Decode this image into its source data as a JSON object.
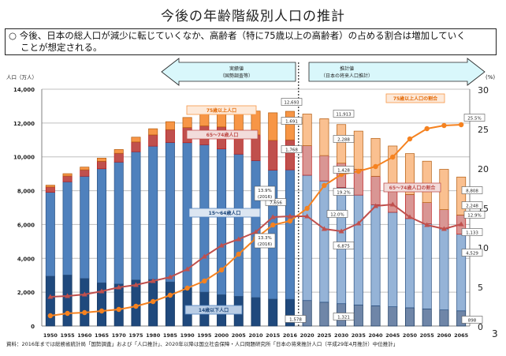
{
  "title": "今後の年齢階級別人口の推計",
  "summary": {
    "bullet": "○",
    "line1": "今後、日本の総人口が減少に転じていくなか、高齢者（特に75歳以上の高齢者）の占める割合は増加していく",
    "line2": "ことが想定される。"
  },
  "arrows": {
    "actual": {
      "label1": "実績値",
      "label2": "（国勢調査等）"
    },
    "projection": {
      "label1": "推計値",
      "label2": "（日本の将来人口推計）"
    }
  },
  "source": "資料：2016年までは総務省統計局「国勢調査」および「人口推計」、2020年以降は国立社会保障・人口問題研究所「日本の将来推計人口（平成29年4月推計）中位推計」",
  "page_number": "3",
  "chart_data": {
    "type": "bar",
    "subtype": "stacked-bar-with-lines",
    "title": "今後の年齢階級別人口の推計",
    "ylabel": "人口（万人）",
    "y2label": "(%)",
    "ylim": [
      0,
      14000
    ],
    "y2lim": [
      0,
      30
    ],
    "yticks": [
      "0",
      "2,000",
      "4,000",
      "6,000",
      "8,000",
      "10,000",
      "12,000",
      "14,000"
    ],
    "y2ticks": [
      "0",
      "5",
      "10",
      "15",
      "20",
      "25",
      "30"
    ],
    "grid": true,
    "categories": [
      "1950",
      "1955",
      "1960",
      "1965",
      "1970",
      "1975",
      "1980",
      "1985",
      "1990",
      "1995",
      "2000",
      "2005",
      "2010",
      "2015",
      "2016",
      "2020",
      "2025",
      "2030",
      "2035",
      "2040",
      "2045",
      "2050",
      "2055",
      "2060",
      "2065"
    ],
    "projection_start_index": 15,
    "colors": {
      "age0_14": "#1f497d",
      "age15_64": "#4f81bd",
      "age65_74": "#c0504d",
      "age75plus": "#f79646",
      "age0_14_proj": "#6f86a8",
      "age15_64_proj": "#95b3d7",
      "age65_74_proj": "#d99694",
      "age75plus_proj": "#fac090",
      "line75": "#f58220",
      "line65_74": "#c0504d"
    },
    "series": [
      {
        "name": "14歳以下人口",
        "key": "age0_14",
        "values": [
          2943,
          3012,
          2807,
          2553,
          2482,
          2722,
          2751,
          2603,
          2249,
          2001,
          1847,
          1752,
          1680,
          1589,
          1578,
          1507,
          1407,
          1321,
          1246,
          1194,
          1138,
          1077,
          1012,
          951,
          898
        ]
      },
      {
        "name": "15～64歳人口",
        "key": "age15_64",
        "values": [
          4966,
          5517,
          6047,
          6744,
          7212,
          7581,
          7883,
          8251,
          8590,
          8716,
          8622,
          8409,
          8103,
          7629,
          7656,
          7406,
          7170,
          6875,
          6494,
          5978,
          5584,
          5275,
          5028,
          4793,
          4529
        ]
      },
      {
        "name": "65～74歳人口",
        "key": "age65_74",
        "values": [
          309,
          338,
          378,
          440,
          516,
          577,
          662,
          754,
          892,
          1109,
          1301,
          1407,
          1517,
          1755,
          1768,
          1747,
          1497,
          1428,
          1522,
          1681,
          1643,
          1424,
          1258,
          1133,
          1133
        ]
      },
      {
        "name": "75歳以上人口",
        "key": "age75plus",
        "values": [
          107,
          139,
          163,
          189,
          224,
          284,
          366,
          471,
          597,
          717,
          900,
          1160,
          1407,
          1632,
          1691,
          1872,
          2180,
          2288,
          2260,
          2239,
          2277,
          2417,
          2446,
          2387,
          2248
        ]
      },
      {
        "name": "75歳以上人口の割合",
        "key": "line75",
        "axis": "right",
        "type": "line",
        "values": [
          1.3,
          1.6,
          1.7,
          1.9,
          2.1,
          2.5,
          3.1,
          3.9,
          4.8,
          5.7,
          7.1,
          9.1,
          11.1,
          12.8,
          13.3,
          14.9,
          17.8,
          19.2,
          19.6,
          20.2,
          21.4,
          23.7,
          25.0,
          25.4,
          25.5
        ]
      },
      {
        "name": "65～74歳人口の割合",
        "key": "line65_74",
        "axis": "right",
        "type": "line",
        "values": [
          3.7,
          3.8,
          4.0,
          4.4,
          4.9,
          5.2,
          5.7,
          6.2,
          7.2,
          8.8,
          10.2,
          11.0,
          11.9,
          13.8,
          13.9,
          13.9,
          12.3,
          12.0,
          13.0,
          15.2,
          15.4,
          13.8,
          12.8,
          12.3,
          12.9
        ]
      }
    ],
    "totals": [
      8320,
      9008,
      9430,
      9921,
      10467,
      11194,
      11706,
      12105,
      12361,
      12557,
      12693,
      12777,
      12806,
      12709,
      12693,
      12532,
      12254,
      11913,
      11522,
      11092,
      10642,
      10192,
      9744,
      9284,
      8808
    ],
    "data_labels": [
      {
        "text": "12,693",
        "series": "total",
        "index": 14
      },
      {
        "text": "1,691",
        "series": "age75plus",
        "index": 14
      },
      {
        "text": "1,768",
        "series": "age65_74",
        "index": 14
      },
      {
        "text": "7,656",
        "series": "age15_64",
        "index": 14
      },
      {
        "text": "1,578",
        "series": "age0_14",
        "index": 14
      },
      {
        "text": "13.9%\n(2016)",
        "series": "line65_74",
        "index": 14
      },
      {
        "text": "13.3%\n(2016)",
        "series": "line75",
        "index": 14
      },
      {
        "text": "11,913",
        "series": "total",
        "index": 17
      },
      {
        "text": "2,288",
        "series": "age75plus",
        "index": 17
      },
      {
        "text": "1,428",
        "series": "age65_74",
        "index": 17
      },
      {
        "text": "19.2%",
        "series": "line75",
        "index": 17
      },
      {
        "text": "12.0%",
        "series": "line65_74",
        "index": 17
      },
      {
        "text": "6,875",
        "series": "age15_64",
        "index": 17
      },
      {
        "text": "1,321",
        "series": "age0_14",
        "index": 17
      },
      {
        "text": "25.5%",
        "series": "line75",
        "index": 24
      },
      {
        "text": "8,808",
        "series": "total",
        "index": 24
      },
      {
        "text": "2,248",
        "series": "age75plus",
        "index": 24
      },
      {
        "text": "12.9%",
        "series": "line65_74",
        "index": 24
      },
      {
        "text": "1,133",
        "series": "age65_74",
        "index": 24
      },
      {
        "text": "4,529",
        "series": "age15_64",
        "index": 24
      },
      {
        "text": "898",
        "series": "age0_14",
        "index": 24
      }
    ],
    "legend_callouts": [
      {
        "text": "75歳以上人口",
        "series": "age75plus"
      },
      {
        "text": "65～74歳人口",
        "series": "age65_74"
      },
      {
        "text": "15～64歳人口",
        "series": "age15_64"
      },
      {
        "text": "14歳以下人口",
        "series": "age0_14"
      },
      {
        "text": "75歳以上人口の割合",
        "series": "line75"
      },
      {
        "text": "65～74歳人口の割合",
        "series": "line65_74"
      }
    ]
  }
}
